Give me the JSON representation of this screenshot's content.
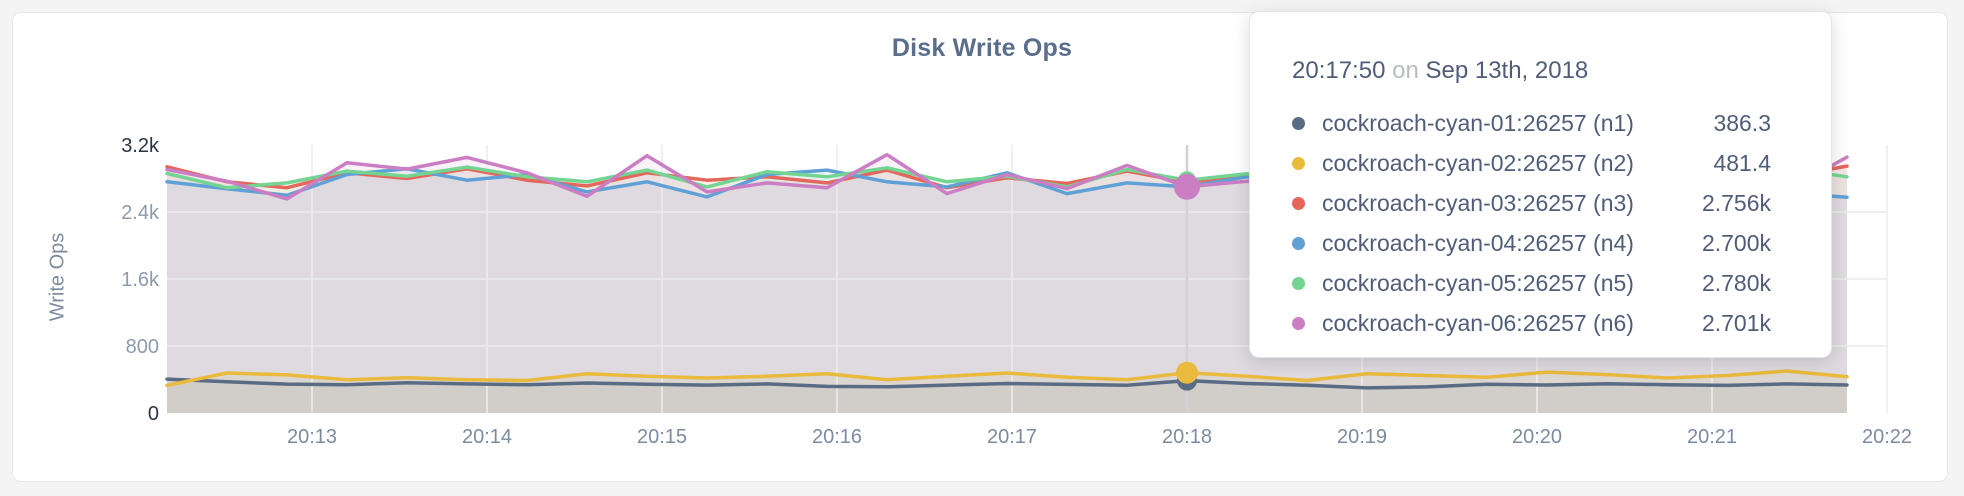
{
  "chart": {
    "title": "Disk Write Ops",
    "ylabel": "Write Ops"
  },
  "tooltip": {
    "time": "20:17:50",
    "conjunction": "on",
    "date": "Sep 13th, 2018",
    "rows": [
      {
        "name": "cockroach-cyan-01:26257 (n1)",
        "value": "386.3",
        "color": "#5a6b84"
      },
      {
        "name": "cockroach-cyan-02:26257 (n2)",
        "value": "481.4",
        "color": "#eaba3d"
      },
      {
        "name": "cockroach-cyan-03:26257 (n3)",
        "value": "2.756k",
        "color": "#e5675c"
      },
      {
        "name": "cockroach-cyan-04:26257 (n4)",
        "value": "2.700k",
        "color": "#5fa1d6"
      },
      {
        "name": "cockroach-cyan-05:26257 (n5)",
        "value": "2.780k",
        "color": "#74d492"
      },
      {
        "name": "cockroach-cyan-06:26257 (n6)",
        "value": "2.701k",
        "color": "#cb7ec3"
      }
    ]
  },
  "chart_data": {
    "type": "line",
    "title": "Disk Write Ops",
    "xlabel": "",
    "ylabel": "Write Ops",
    "ylim": [
      0,
      3200
    ],
    "grid": true,
    "area_fill": true,
    "legend_position": "tooltip",
    "x_ticks": [
      "20:13",
      "20:14",
      "20:15",
      "20:16",
      "20:17",
      "20:18",
      "20:19",
      "20:20",
      "20:21",
      "20:22"
    ],
    "y_ticks": [
      {
        "label": "0",
        "value": 0
      },
      {
        "label": "800",
        "value": 800
      },
      {
        "label": "1.6k",
        "value": 1600
      },
      {
        "label": "2.4k",
        "value": 2400
      },
      {
        "label": "3.2k",
        "value": 3200
      }
    ],
    "hover_index": 17,
    "hover_time": "20:17:50",
    "series": [
      {
        "name": "cockroach-cyan-01:26257 (n1)",
        "color": "#5a6b84",
        "values": [
          405,
          372,
          345,
          338,
          362,
          348,
          337,
          358,
          344,
          333,
          348,
          318,
          313,
          333,
          352,
          342,
          332,
          386.3,
          352,
          332,
          300,
          312,
          344,
          334,
          350,
          338,
          330,
          348,
          334
        ]
      },
      {
        "name": "cockroach-cyan-02:26257 (n2)",
        "color": "#eaba3d",
        "values": [
          330,
          478,
          455,
          398,
          420,
          398,
          388,
          468,
          438,
          418,
          438,
          468,
          398,
          438,
          478,
          428,
          398,
          481.4,
          438,
          388,
          468,
          448,
          428,
          488,
          458,
          418,
          448,
          502,
          432
        ]
      },
      {
        "name": "cockroach-cyan-03:26257 (n3)",
        "color": "#e5675c",
        "values": [
          2940,
          2760,
          2690,
          2868,
          2800,
          2916,
          2780,
          2712,
          2868,
          2780,
          2820,
          2748,
          2900,
          2690,
          2808,
          2740,
          2888,
          2756,
          2828,
          2700,
          2916,
          2760,
          2848,
          2700,
          2790,
          2856,
          2748,
          2820,
          2948
        ]
      },
      {
        "name": "cockroach-cyan-04:26257 (n4)",
        "color": "#5fa1d6",
        "values": [
          2760,
          2678,
          2600,
          2848,
          2916,
          2780,
          2848,
          2640,
          2760,
          2580,
          2848,
          2900,
          2760,
          2700,
          2868,
          2620,
          2748,
          2700,
          2820,
          2700,
          2868,
          2640,
          2788,
          2856,
          2700,
          2916,
          2780,
          2628,
          2576
        ]
      },
      {
        "name": "cockroach-cyan-05:26257 (n5)",
        "color": "#74d492",
        "values": [
          2860,
          2690,
          2748,
          2888,
          2828,
          2936,
          2820,
          2760,
          2900,
          2700,
          2880,
          2820,
          2928,
          2760,
          2828,
          2700,
          2908,
          2780,
          2856,
          2720,
          2948,
          2788,
          2868,
          2748,
          2908,
          2780,
          2856,
          2928,
          2820
        ]
      },
      {
        "name": "cockroach-cyan-06:26257 (n6)",
        "color": "#cb7ec3",
        "values": [
          2908,
          2768,
          2556,
          2988,
          2912,
          3052,
          2868,
          2588,
          3072,
          2640,
          2748,
          2690,
          3084,
          2620,
          2848,
          2680,
          2956,
          2701,
          2768,
          2640,
          2876,
          2700,
          2916,
          2650,
          2780,
          2628,
          2900,
          2660,
          3056
        ]
      }
    ]
  }
}
